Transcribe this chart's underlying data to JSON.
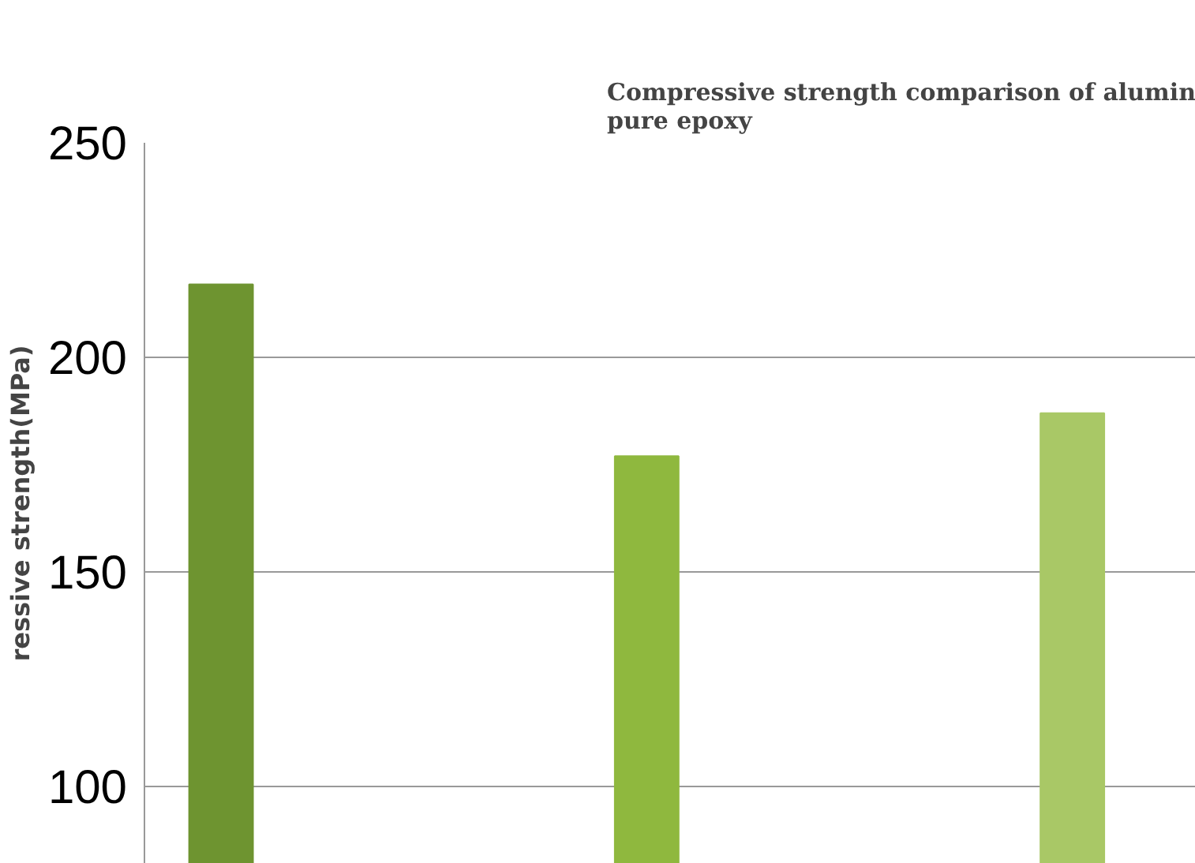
{
  "chart_data": {
    "type": "bar",
    "title": "Compressive strength comparison of alumin\npure epoxy",
    "ylabel": "ressive strength(MPa)",
    "categories": [
      null,
      null,
      null
    ],
    "values": [
      217,
      177,
      187
    ],
    "colors": [
      "#6e9430",
      "#8fb83e",
      "#a9c866"
    ],
    "ylim": [
      82,
      250
    ],
    "yticks": [
      100,
      150,
      200,
      250
    ],
    "grid": "y",
    "tick_labels": "y"
  }
}
